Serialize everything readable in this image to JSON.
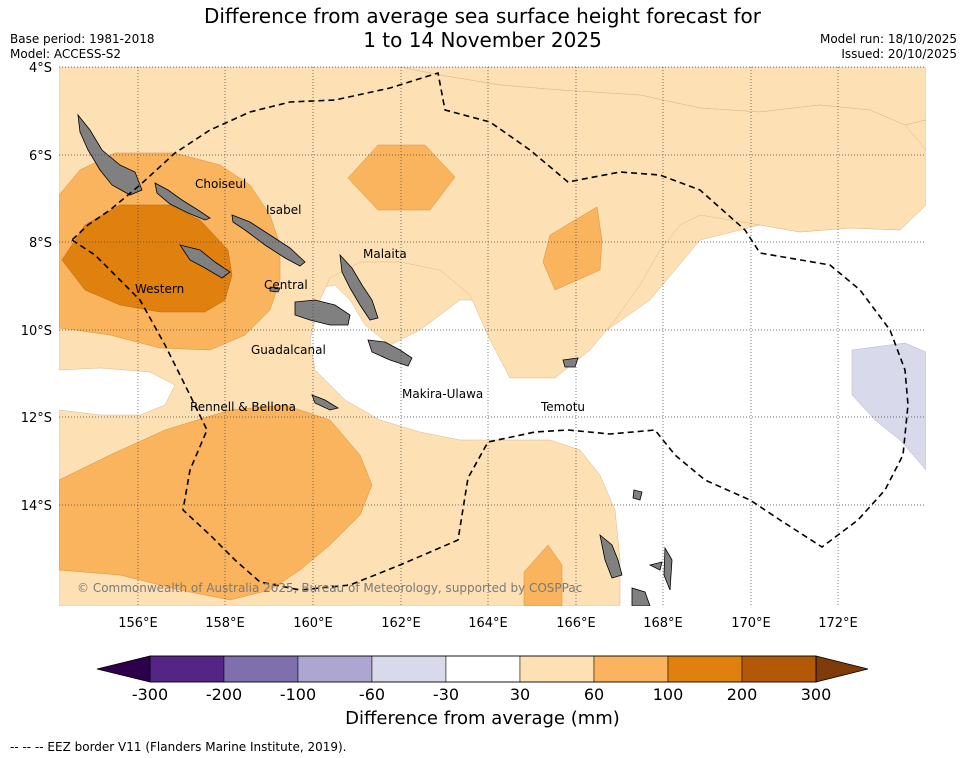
{
  "title_line1": "Difference from average sea surface height forecast for",
  "title_line2": "1 to 14 November 2025",
  "base_period": "Base period: 1981-2018",
  "model": "Model: ACCESS-S2",
  "model_run": "Model run: 18/10/2025",
  "issued": "Issued: 20/10/2025",
  "lat_labels": [
    "4°S",
    "6°S",
    "8°S",
    "10°S",
    "12°S",
    "14°S"
  ],
  "lon_labels": [
    "156°E",
    "158°E",
    "160°E",
    "162°E",
    "164°E",
    "166°E",
    "168°E",
    "170°E",
    "172°E"
  ],
  "regions": [
    "Choiseul",
    "Isabel",
    "Malaita",
    "Western",
    "Central",
    "Guadalcanal",
    "Makira-Ulawa",
    "Rennell & Bellona",
    "Temotu"
  ],
  "copyright": "© Commonwealth of Australia 2025, Bureau of Meteorology, supported by COSPPac",
  "colorbar": {
    "ticks": [
      "-300",
      "-200",
      "-100",
      "-60",
      "-30",
      "30",
      "60",
      "100",
      "200",
      "300"
    ],
    "colors": [
      "#552586",
      "#7f6fac",
      "#ada6d0",
      "#d9d9ec",
      "#ffffff",
      "#fde0b4",
      "#fab45e",
      "#e0800f",
      "#b35806"
    ],
    "under_color": "#2d004b",
    "over_color": "#7f3b08",
    "title": "Difference from average (mm)"
  },
  "footer": "--  --  -- EEZ border V11 (Flanders Marine Institute, 2019)."
}
